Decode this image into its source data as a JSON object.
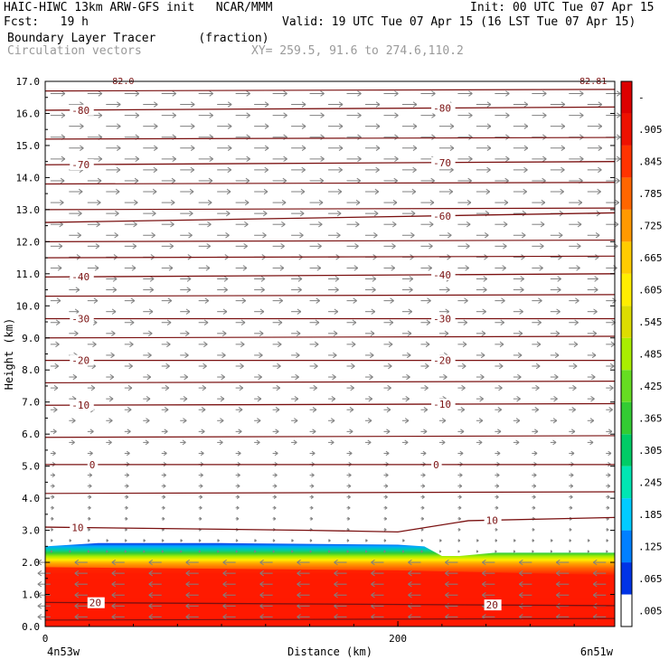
{
  "header": {
    "model_line": "HAIC-HIWC 13km ARW-GFS init   NCAR/MMM",
    "init_line": "Init: 00 UTC Tue 07 Apr 15",
    "fcst_line": "Fcst:   19 h",
    "valid_line": "Valid: 19 UTC Tue 07 Apr 15 (16 LST Tue 07 Apr 15)",
    "field_line": "Boundary Layer Tracer      (fraction)",
    "vectors_line": "Circulation vectors",
    "xy_line": "XY= 259.5, 91.6 to 274.6,110.2"
  },
  "chart_data": {
    "type": "heatmap",
    "title": "Boundary Layer Tracer",
    "units": "(fraction)",
    "xlabel": "Distance (km)",
    "ylabel": "Height (km)",
    "x_start_label": "4n53w",
    "x_end_label": "6n51w",
    "xlim": [
      0,
      323
    ],
    "ylim": [
      0,
      17
    ],
    "x_ticks": [
      0,
      200
    ],
    "y_ticks": [
      "0.0",
      "1.0",
      "2.0",
      "3.0",
      "4.0",
      "5.0",
      "6.0",
      "7.0",
      "8.0",
      "9.0",
      "10.0",
      "11.0",
      "12.0",
      "13.0",
      "14.0",
      "15.0",
      "16.0",
      "17.0"
    ],
    "colorbar": {
      "labels": [
        ".005",
        ".065",
        ".125",
        ".185",
        ".245",
        ".305",
        ".365",
        ".425",
        ".485",
        ".545",
        ".605",
        ".665",
        ".725",
        ".785",
        ".845",
        ".905",
        "-"
      ],
      "colors": [
        "#ffffff",
        "#0033e6",
        "#0080ff",
        "#00ccff",
        "#00e6b3",
        "#00cc66",
        "#33cc33",
        "#66dd22",
        "#aaee00",
        "#dddd00",
        "#ffee00",
        "#ffcc00",
        "#ff9900",
        "#ff6600",
        "#ff3300",
        "#ee1100",
        "#dd0000"
      ]
    },
    "tracer_top_km": [
      [
        0,
        2.5
      ],
      [
        30,
        2.6
      ],
      [
        100,
        2.6
      ],
      [
        200,
        2.55
      ],
      [
        215,
        2.5
      ],
      [
        225,
        2.2
      ],
      [
        235,
        2.2
      ],
      [
        255,
        2.3
      ],
      [
        323,
        2.3
      ]
    ],
    "mixed_layer_top_km": [
      [
        0,
        1.85
      ],
      [
        200,
        1.75
      ],
      [
        323,
        1.6
      ]
    ],
    "temperature_contours": [
      {
        "value": -80,
        "label": "-80",
        "points": [
          [
            0,
            16.1
          ],
          [
            323,
            16.2
          ]
        ],
        "labels_at": [
          15,
          220
        ]
      },
      {
        "value": -70,
        "label": "-70",
        "points": [
          [
            0,
            14.4
          ],
          [
            323,
            14.5
          ]
        ],
        "labels_at": [
          15,
          220
        ]
      },
      {
        "value": -60,
        "label": "-60",
        "points": [
          [
            0,
            12.6
          ],
          [
            323,
            12.9
          ]
        ],
        "labels_at": [
          220
        ]
      },
      {
        "value": -40,
        "label": "-40",
        "points": [
          [
            0,
            10.9
          ],
          [
            323,
            11.0
          ]
        ],
        "labels_at": [
          15,
          220
        ]
      },
      {
        "value": -30,
        "label": "-30",
        "points": [
          [
            0,
            9.6
          ],
          [
            323,
            9.6
          ]
        ],
        "labels_at": [
          15,
          220
        ]
      },
      {
        "value": -20,
        "label": "-20",
        "points": [
          [
            0,
            8.3
          ],
          [
            323,
            8.3
          ]
        ],
        "labels_at": [
          15,
          220
        ]
      },
      {
        "value": -10,
        "label": "-10",
        "points": [
          [
            0,
            6.9
          ],
          [
            323,
            6.95
          ]
        ],
        "labels_at": [
          15,
          220
        ]
      },
      {
        "value": 0,
        "label": "0",
        "points": [
          [
            0,
            5.05
          ],
          [
            323,
            5.05
          ]
        ],
        "labels_at": [
          25,
          220
        ]
      },
      {
        "value": 10,
        "label": "10",
        "points": [
          [
            0,
            3.1
          ],
          [
            150,
            3.0
          ],
          [
            200,
            2.95
          ],
          [
            240,
            3.3
          ],
          [
            323,
            3.4
          ]
        ],
        "labels_at": [
          15,
          250
        ]
      },
      {
        "value": 20,
        "label": "20",
        "points": [
          [
            0,
            0.75
          ],
          [
            323,
            0.65
          ]
        ],
        "labels_at": [
          25,
          250
        ]
      }
    ],
    "unlabeled_contours_km": [
      16.7,
      15.2,
      13.8,
      13.0,
      12.0,
      11.5,
      10.3,
      9.0,
      7.6,
      5.9,
      4.15,
      0.2
    ],
    "top_edge_labels": [
      {
        "x": 35,
        "label": "-82.0"
      },
      {
        "x": 300,
        "label": "-82.81"
      }
    ]
  }
}
